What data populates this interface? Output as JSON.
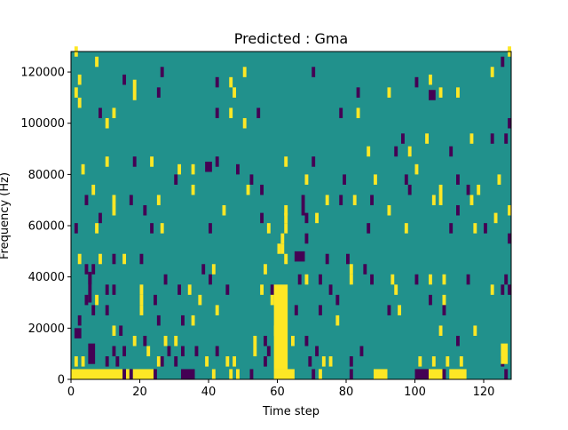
{
  "chart_data": {
    "type": "heatmap",
    "title": "Predicted : Gma",
    "xlabel": "Time step",
    "ylabel": "Frequency (Hz)",
    "xlim": [
      0,
      128
    ],
    "ylim": [
      0,
      128000
    ],
    "xticks": [
      "0",
      "20",
      "40",
      "60",
      "80",
      "100",
      "120"
    ],
    "xtick_values": [
      0,
      20,
      40,
      60,
      80,
      100,
      120
    ],
    "yticks": [
      "0",
      "20000",
      "40000",
      "60000",
      "80000",
      "100000",
      "120000"
    ],
    "ytick_values": [
      0,
      20000,
      40000,
      60000,
      80000,
      100000,
      120000
    ],
    "colormap": {
      "-1": "#440154",
      "0": "#21918c",
      "1": "#fde725"
    },
    "background_value": 0,
    "cell_default": {
      "time_steps": 1,
      "freq_khz": 4
    },
    "cells_note": "[time_step, freq_kHz, value]",
    "cells": [
      [
        1,
        126,
        1
      ],
      [
        7,
        122,
        1
      ],
      [
        26,
        118,
        -1
      ],
      [
        2,
        115,
        1
      ],
      [
        15,
        115,
        -1
      ],
      [
        1,
        110,
        1
      ],
      [
        25,
        110,
        -1
      ],
      [
        42,
        114,
        -1
      ],
      [
        46,
        114,
        1
      ],
      [
        47,
        110,
        1
      ],
      [
        50,
        118,
        1
      ],
      [
        2,
        106,
        1
      ],
      [
        8,
        102,
        -1
      ],
      [
        12,
        102,
        1
      ],
      [
        10,
        98,
        1
      ],
      [
        42,
        102,
        -1
      ],
      [
        46,
        102,
        1
      ],
      [
        50,
        98,
        1
      ],
      [
        54,
        102,
        -1
      ],
      [
        70,
        118,
        -1
      ],
      [
        83,
        110,
        -1
      ],
      [
        78,
        102,
        -1
      ],
      [
        83,
        102,
        1
      ],
      [
        92,
        110,
        1
      ],
      [
        100,
        114,
        -1
      ],
      [
        104,
        115,
        1
      ],
      [
        107,
        110,
        1
      ],
      [
        112,
        110,
        1
      ],
      [
        125,
        122,
        -1
      ],
      [
        127,
        126,
        1
      ],
      [
        122,
        118,
        1
      ],
      [
        127,
        98,
        -1
      ],
      [
        96,
        92,
        -1
      ],
      [
        103,
        92,
        1
      ],
      [
        116,
        92,
        1
      ],
      [
        122,
        92,
        -1
      ],
      [
        126,
        92,
        -1
      ],
      [
        86,
        87,
        1
      ],
      [
        94,
        87,
        -1
      ],
      [
        98,
        87,
        1
      ],
      [
        110,
        87,
        -1
      ],
      [
        10,
        83,
        1
      ],
      [
        18,
        83,
        -1
      ],
      [
        23,
        83,
        1
      ],
      [
        42,
        83,
        -1
      ],
      [
        62,
        83,
        1
      ],
      [
        70,
        83,
        -1
      ],
      [
        3,
        80,
        1
      ],
      [
        31,
        80,
        1
      ],
      [
        35,
        80,
        1
      ],
      [
        48,
        80,
        -1
      ],
      [
        100,
        80,
        1
      ],
      [
        30,
        76,
        -1
      ],
      [
        52,
        76,
        -1
      ],
      [
        68,
        76,
        1
      ],
      [
        79,
        76,
        -1
      ],
      [
        88,
        76,
        1
      ],
      [
        97,
        76,
        -1
      ],
      [
        112,
        76,
        -1
      ],
      [
        124,
        76,
        1
      ],
      [
        6,
        72,
        1
      ],
      [
        35,
        72,
        1
      ],
      [
        51,
        72,
        1
      ],
      [
        55,
        72,
        -1
      ],
      [
        98,
        72,
        -1
      ],
      [
        115,
        72,
        -1
      ],
      [
        118,
        72,
        1
      ],
      [
        4,
        68,
        -1
      ],
      [
        12,
        68,
        1
      ],
      [
        17,
        68,
        -1
      ],
      [
        25,
        68,
        1
      ],
      [
        67,
        68,
        -1
      ],
      [
        74,
        68,
        1
      ],
      [
        78,
        68,
        -1
      ],
      [
        82,
        68,
        1
      ],
      [
        87,
        68,
        -1
      ],
      [
        105,
        68,
        1
      ],
      [
        116,
        68,
        1
      ],
      [
        127,
        64,
        1
      ],
      [
        12,
        64,
        1
      ],
      [
        21,
        64,
        -1
      ],
      [
        44,
        64,
        1
      ],
      [
        62,
        64,
        1
      ],
      [
        67,
        64,
        -1
      ],
      [
        92,
        64,
        1
      ],
      [
        112,
        64,
        -1
      ],
      [
        8,
        61,
        -1
      ],
      [
        55,
        61,
        -1
      ],
      [
        62,
        61,
        1
      ],
      [
        68,
        61,
        -1
      ],
      [
        71,
        61,
        1
      ],
      [
        123,
        61,
        1
      ],
      [
        1,
        57,
        -1
      ],
      [
        7,
        57,
        1
      ],
      [
        23,
        57,
        -1
      ],
      [
        26,
        57,
        1
      ],
      [
        40,
        57,
        -1
      ],
      [
        57,
        57,
        1
      ],
      [
        62,
        57,
        1
      ],
      [
        86,
        57,
        -1
      ],
      [
        97,
        57,
        1
      ],
      [
        110,
        57,
        -1
      ],
      [
        117,
        57,
        1
      ],
      [
        120,
        57,
        -1
      ],
      [
        61,
        53,
        1
      ],
      [
        68,
        53,
        -1
      ],
      [
        127,
        53,
        -1
      ],
      [
        60,
        49,
        1
      ],
      [
        61,
        49,
        1
      ],
      [
        62,
        45,
        1
      ],
      [
        2,
        45,
        1
      ],
      [
        8,
        45,
        1
      ],
      [
        12,
        45,
        -1
      ],
      [
        15,
        45,
        1
      ],
      [
        20,
        45,
        -1
      ],
      [
        74,
        45,
        -1
      ],
      [
        80,
        45,
        -1
      ],
      [
        4,
        41,
        -1
      ],
      [
        6,
        41,
        -1
      ],
      [
        38,
        41,
        -1
      ],
      [
        41,
        41,
        1
      ],
      [
        56,
        41,
        1
      ],
      [
        81,
        41,
        1
      ],
      [
        81,
        37,
        1
      ],
      [
        85,
        41,
        -1
      ],
      [
        5,
        37,
        -1
      ],
      [
        27,
        37,
        -1
      ],
      [
        40,
        37,
        -1
      ],
      [
        66,
        37,
        -1
      ],
      [
        68,
        37,
        1
      ],
      [
        72,
        37,
        -1
      ],
      [
        87,
        37,
        -1
      ],
      [
        93,
        37,
        1
      ],
      [
        100,
        37,
        -1
      ],
      [
        104,
        37,
        1
      ],
      [
        108,
        37,
        1
      ],
      [
        115,
        37,
        -1
      ],
      [
        126,
        37,
        -1
      ],
      [
        10,
        33,
        -1
      ],
      [
        12,
        33,
        -1
      ],
      [
        20,
        33,
        1
      ],
      [
        31,
        33,
        -1
      ],
      [
        34,
        33,
        1
      ],
      [
        45,
        33,
        -1
      ],
      [
        55,
        33,
        1
      ],
      [
        58,
        33,
        -1
      ],
      [
        75,
        33,
        -1
      ],
      [
        94,
        33,
        1
      ],
      [
        122,
        33,
        1
      ],
      [
        125,
        33,
        -1
      ],
      [
        127,
        33,
        -1
      ],
      [
        4,
        29,
        -1
      ],
      [
        7,
        29,
        1
      ],
      [
        20,
        29,
        1
      ],
      [
        24,
        29,
        -1
      ],
      [
        37,
        29,
        1
      ],
      [
        58,
        29,
        1
      ],
      [
        77,
        29,
        -1
      ],
      [
        104,
        29,
        -1
      ],
      [
        108,
        29,
        1
      ],
      [
        6,
        25,
        -1
      ],
      [
        10,
        25,
        -1
      ],
      [
        20,
        25,
        1
      ],
      [
        42,
        25,
        1
      ],
      [
        65,
        25,
        -1
      ],
      [
        72,
        25,
        -1
      ],
      [
        92,
        25,
        -1
      ],
      [
        95,
        25,
        1
      ],
      [
        108,
        25,
        -1
      ],
      [
        2,
        21,
        -1
      ],
      [
        25,
        21,
        -1
      ],
      [
        32,
        21,
        -1
      ],
      [
        35,
        21,
        1
      ],
      [
        77,
        21,
        1
      ],
      [
        12,
        17,
        1
      ],
      [
        14,
        17,
        -1
      ],
      [
        59,
        17,
        1
      ],
      [
        107,
        17,
        1
      ],
      [
        117,
        17,
        1
      ],
      [
        18,
        13,
        1
      ],
      [
        21,
        13,
        -1
      ],
      [
        27,
        13,
        1
      ],
      [
        30,
        13,
        1
      ],
      [
        53,
        13,
        1
      ],
      [
        56,
        13,
        -1
      ],
      [
        64,
        13,
        1
      ],
      [
        68,
        13,
        -1
      ],
      [
        112,
        13,
        -1
      ],
      [
        12,
        9,
        -1
      ],
      [
        15,
        9,
        -1
      ],
      [
        22,
        9,
        1
      ],
      [
        28,
        9,
        -1
      ],
      [
        32,
        9,
        -1
      ],
      [
        36,
        9,
        -1
      ],
      [
        42,
        9,
        -1
      ],
      [
        53,
        9,
        1
      ],
      [
        57,
        9,
        -1
      ],
      [
        71,
        9,
        -1
      ],
      [
        84,
        9,
        -1
      ],
      [
        1,
        5,
        1
      ],
      [
        3,
        5,
        1
      ],
      [
        10,
        5,
        -1
      ],
      [
        13,
        5,
        -1
      ],
      [
        25,
        5,
        1
      ],
      [
        26,
        5,
        -1
      ],
      [
        30,
        5,
        -1
      ],
      [
        39,
        5,
        1
      ],
      [
        45,
        5,
        1
      ],
      [
        47,
        5,
        1
      ],
      [
        56,
        5,
        -1
      ],
      [
        69,
        5,
        -1
      ],
      [
        73,
        5,
        1
      ],
      [
        75,
        5,
        1
      ],
      [
        81,
        5,
        -1
      ],
      [
        101,
        5,
        1
      ],
      [
        105,
        5,
        1
      ],
      [
        109,
        5,
        1
      ],
      [
        113,
        5,
        1
      ],
      [
        125,
        5,
        -1
      ]
    ],
    "blocks_note": "[time_start, time_steps, freq_kHz_start, freq_kHz_span, value]",
    "blocks": [
      [
        0,
        15,
        0,
        4,
        1
      ],
      [
        15,
        1,
        0,
        4,
        -1
      ],
      [
        16,
        1,
        0,
        4,
        1
      ],
      [
        17,
        1,
        0,
        4,
        -1
      ],
      [
        18,
        6,
        0,
        4,
        1
      ],
      [
        24,
        1,
        0,
        4,
        -1
      ],
      [
        32,
        4,
        0,
        4,
        -1
      ],
      [
        41,
        1,
        0,
        4,
        1
      ],
      [
        46,
        1,
        0,
        4,
        1
      ],
      [
        48,
        1,
        0,
        4,
        1
      ],
      [
        52,
        1,
        0,
        4,
        -1
      ],
      [
        59,
        6,
        0,
        4,
        1
      ],
      [
        70,
        1,
        0,
        4,
        -1
      ],
      [
        72,
        1,
        0,
        4,
        1
      ],
      [
        81,
        1,
        0,
        4,
        -1
      ],
      [
        88,
        4,
        0,
        4,
        1
      ],
      [
        100,
        4,
        0,
        4,
        -1
      ],
      [
        104,
        4,
        0,
        4,
        1
      ],
      [
        108,
        1,
        0,
        4,
        -1
      ],
      [
        110,
        5,
        0,
        4,
        1
      ],
      [
        126,
        1,
        0,
        4,
        -1
      ],
      [
        1,
        2,
        16,
        4,
        -1
      ],
      [
        5,
        2,
        6,
        8,
        -1
      ],
      [
        125,
        2,
        6,
        8,
        1
      ],
      [
        5,
        1,
        30,
        12,
        -1
      ],
      [
        59,
        4,
        4,
        33,
        1
      ],
      [
        65,
        3,
        46,
        4,
        -1
      ],
      [
        39,
        2,
        81,
        4,
        -1
      ],
      [
        104,
        2,
        109,
        4,
        -1
      ],
      [
        18,
        1,
        109,
        8,
        1
      ],
      [
        107,
        1,
        68,
        8,
        1
      ]
    ]
  }
}
